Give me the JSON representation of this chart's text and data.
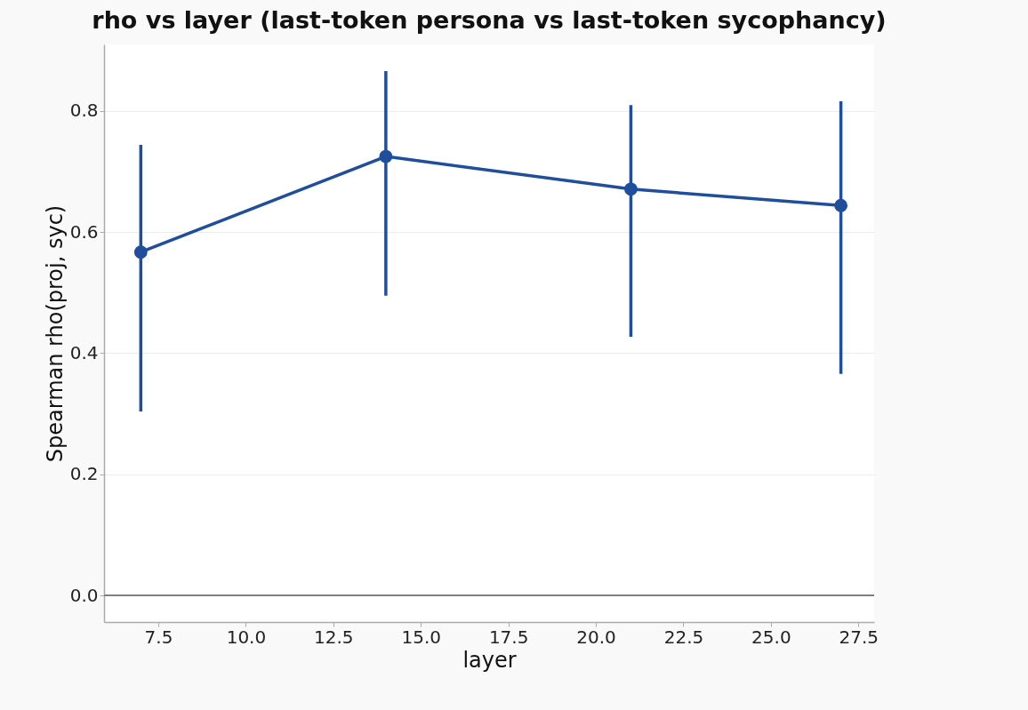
{
  "chart_data": {
    "type": "line",
    "title": "rho vs layer (last-token persona vs last-token sycophancy)",
    "xlabel": "layer",
    "ylabel": "Spearman rho(proj, syc)",
    "x": [
      7,
      14,
      21,
      27
    ],
    "values": [
      0.567,
      0.725,
      0.671,
      0.644
    ],
    "errors": [
      [
        0.304,
        0.744
      ],
      [
        0.495,
        0.866
      ],
      [
        0.427,
        0.81
      ],
      [
        0.366,
        0.816
      ]
    ],
    "color": "#1f4e9c",
    "marker": "circle",
    "line_style": "solid",
    "xlim": [
      5.95,
      27.95
    ],
    "xticks": [
      7.5,
      {
        "value": 10,
        "label": "10.0"
      },
      12.5,
      {
        "value": 15,
        "label": "15.0"
      },
      17.5,
      {
        "value": 20,
        "label": "20.0"
      },
      22.5,
      {
        "value": 25,
        "label": "25.0"
      },
      27.5
    ],
    "ylim": [
      -0.044,
      0.91
    ],
    "yticks": [
      {
        "value": 0,
        "label": "0.0"
      },
      0.2,
      0.4,
      0.6,
      0.8
    ],
    "grid": "y",
    "ref_lines": [
      {
        "axis": "y",
        "value": 0,
        "color": "#808080"
      }
    ]
  }
}
